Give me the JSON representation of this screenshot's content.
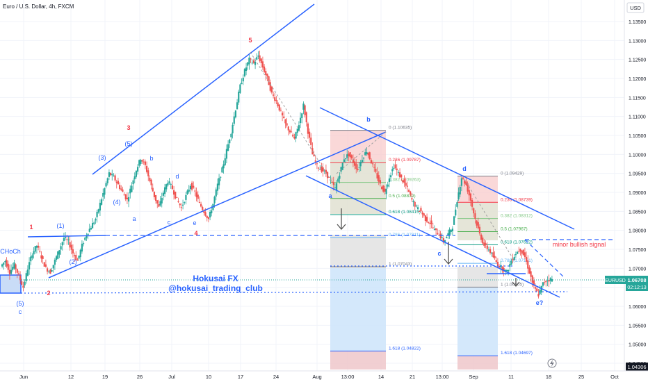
{
  "title": "Euro / U.S. Dollar, 4h, FXCM",
  "currency": "USD",
  "watermark": {
    "line1": "Hokusai FX",
    "line2": "@hokusai_trading_club"
  },
  "price_axis": {
    "labels": [
      "1.13500",
      "1.13000",
      "1.12500",
      "1.12000",
      "1.11500",
      "1.11000",
      "1.10500",
      "1.10000",
      "1.09500",
      "1.09000",
      "1.08500",
      "1.08000",
      "1.07500",
      "1.07000",
      "1.06500",
      "1.06000",
      "1.05500",
      "1.05000",
      "1.04500"
    ],
    "bottom_label": "1.04306",
    "symbol_tag": "EURUSD",
    "price_tag": "1.06708",
    "countdown": "02:12:13"
  },
  "time_axis": {
    "labels": [
      "Jun",
      "12",
      "19",
      "26",
      "Jul",
      "10",
      "17",
      "24",
      "Aug",
      "13:00",
      "14",
      "21",
      "13:00",
      "Sep",
      "11",
      "18",
      "25",
      "Oct"
    ]
  },
  "colors": {
    "up": "#26a69a",
    "down": "#ef5350",
    "wave_blue": "#2962ff",
    "wave_red": "#f23645",
    "fib_red_zone": "#f8c8c8",
    "fib_blue_zone": "#cfe5fb",
    "fib_grey_zone": "#e6e6e6"
  },
  "fib1": {
    "levels": [
      {
        "label": "0 (1.10635)",
        "price": 1.10635,
        "color": "#787b86"
      },
      {
        "label": "0.236 (1.09787)",
        "price": 1.09787,
        "color": "#f23645"
      },
      {
        "label": "0.382 (1.09263)",
        "price": 1.09263,
        "color": "#81c784"
      },
      {
        "label": "0.5 (1.08839)",
        "price": 1.08839,
        "color": "#4caf50"
      },
      {
        "label": "0.618 (1.08415)",
        "price": 1.08415,
        "color": "#089981"
      },
      {
        "label": "0.786 (1.07811)",
        "price": 1.07811,
        "color": "#64b5f6"
      },
      {
        "label": "1 (1.07043)",
        "price": 1.07043,
        "color": "#787b86"
      },
      {
        "label": "1.618 (1.04822)",
        "price": 1.04822,
        "color": "#2962ff"
      }
    ]
  },
  "fib2": {
    "levels": [
      {
        "label": "0 (1.09429)",
        "price": 1.09429,
        "color": "#787b86"
      },
      {
        "label": "0.236 (1.08739)",
        "price": 1.08739,
        "color": "#f23645"
      },
      {
        "label": "0.382 (1.08312)",
        "price": 1.08312,
        "color": "#81c784"
      },
      {
        "label": "0.5 (1.07967)",
        "price": 1.07967,
        "color": "#4caf50"
      },
      {
        "label": "0.618 (1.07622)",
        "price": 1.07622,
        "color": "#089981"
      },
      {
        "label": "0.786 (1.07131)",
        "price": 1.07131,
        "color": "#64b5f6"
      },
      {
        "label": "1 (1.06505)",
        "price": 1.06505,
        "color": "#787b86"
      },
      {
        "label": "1.618 (1.04697)",
        "price": 1.04697,
        "color": "#2962ff"
      }
    ]
  },
  "annotations": {
    "minor_bullish": "minor bullish signal",
    "choch": "CHoCh",
    "red_labels": [
      "1",
      "2",
      "3",
      "4",
      "5"
    ],
    "blue_labels": [
      "(1)",
      "(2)",
      "(3)",
      "(4)",
      "(5)",
      "(5)",
      "a",
      "b",
      "c",
      "d",
      "e",
      "a",
      "b",
      "c",
      "d",
      "e?",
      "c"
    ]
  },
  "chart_data": {
    "type": "candlestick",
    "title": "Euro / U.S. Dollar, 4h, FXCM",
    "symbol": "EURUSD",
    "last_price": 1.06708,
    "ylim": [
      1.04306,
      1.136
    ],
    "x_tick_labels": [
      "Jun",
      "12",
      "19",
      "26",
      "Jul",
      "10",
      "17",
      "24",
      "Aug",
      "13:00",
      "14",
      "21",
      "13:00",
      "Sep",
      "11",
      "18",
      "25",
      "Oct"
    ],
    "y_tick_labels": [
      "1.13500",
      "1.13000",
      "1.12500",
      "1.12000",
      "1.11500",
      "1.11000",
      "1.10500",
      "1.10000",
      "1.09500",
      "1.09000",
      "1.08500",
      "1.08000",
      "1.07500",
      "1.07000",
      "1.06500",
      "1.06000",
      "1.05500",
      "1.05000",
      "1.04500"
    ],
    "close_path": [
      [
        1.0705,
        1.072,
        1.069,
        1.071,
        1.068,
        1.065,
        1.07,
        1.074,
        1.076,
        1.073,
        1.07,
        1.069,
        1.072,
        1.075,
        1.078,
        1.077,
        1.074,
        1.072,
        1.076,
        1.079,
        1.081,
        1.083,
        1.087,
        1.091,
        1.095,
        1.094,
        1.092,
        1.09,
        1.088,
        1.092,
        1.096,
        1.099,
        1.097,
        1.093,
        1.089,
        1.086,
        1.09,
        1.093,
        1.091,
        1.088,
        1.086,
        1.089,
        1.092,
        1.09,
        1.087,
        1.085,
        1.083,
        1.087,
        1.092,
        1.096,
        1.101,
        1.106,
        1.112,
        1.118,
        1.122,
        1.125,
        1.124,
        1.126,
        1.123,
        1.12,
        1.116,
        1.114,
        1.111,
        1.108,
        1.106,
        1.104,
        1.108,
        1.113,
        1.106,
        1.1,
        1.097,
        1.096,
        1.095,
        1.093,
        1.091,
        1.095,
        1.099,
        1.1,
        1.098,
        1.096,
        1.099,
        1.101,
        1.098,
        1.095,
        1.092,
        1.09,
        1.094,
        1.097,
        1.095,
        1.093,
        1.091,
        1.088,
        1.086,
        1.085,
        1.083,
        1.082,
        1.08,
        1.079,
        1.077,
        1.079,
        1.081,
        1.088,
        1.094,
        1.092,
        1.088,
        1.083,
        1.079,
        1.076,
        1.075,
        1.073,
        1.071,
        1.07,
        1.069,
        1.072,
        1.074,
        1.075,
        1.073,
        1.069,
        1.065,
        1.063,
        1.066,
        1.067,
        1.0671
      ]
    ],
    "wave_labels": {
      "red": [
        "1",
        "2",
        "3",
        "4",
        "5"
      ],
      "blue": [
        "(1)",
        "(2)",
        "(3)",
        "(4)",
        "(5)",
        "a",
        "b",
        "c",
        "d",
        "e",
        "e?"
      ]
    }
  }
}
